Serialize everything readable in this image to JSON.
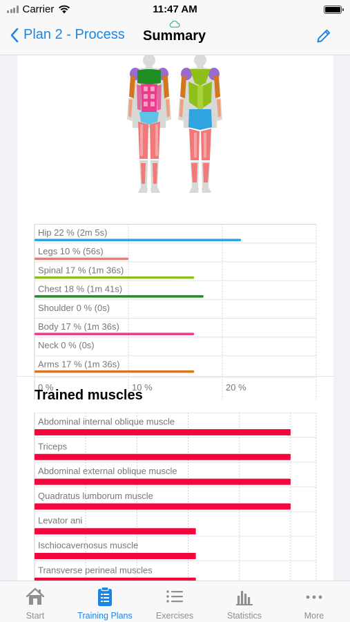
{
  "status_bar": {
    "carrier": "Carrier",
    "time": "11:47 AM"
  },
  "nav": {
    "back_label": "Plan 2 - Process",
    "title": "Summary"
  },
  "colors": {
    "accent": "#1a86e8",
    "muscle_bar": "#f2063c",
    "tab_inactive": "#8e8e93"
  },
  "region_chart": {
    "chart_data": {
      "type": "bar",
      "orientation": "horizontal",
      "categories": [
        "Hip",
        "Legs",
        "Spinal",
        "Chest",
        "Shoulder",
        "Body",
        "Neck",
        "Arms"
      ],
      "labels": [
        "Hip 22 % (2m 5s)",
        "Legs 10 % (56s)",
        "Spinal 17 % (1m 36s)",
        "Chest 18 % (1m 41s)",
        "Shoulder 0 % (0s)",
        "Body 17 % (1m 36s)",
        "Neck 0 % (0s)",
        "Arms 17 % (1m 36s)"
      ],
      "values": [
        22,
        10,
        17,
        18,
        0,
        17,
        0,
        17
      ],
      "colors": [
        "#2fa4de",
        "#f07a6e",
        "#8fbf1a",
        "#1e8e22",
        "#9a6ad0",
        "#e83e8c",
        "#9e9e9e",
        "#d4761e"
      ],
      "xlim": [
        0,
        30
      ],
      "xtick_labels": [
        "0 %",
        "10 %",
        "20 %"
      ],
      "xticks": [
        0,
        10,
        20
      ],
      "grid": true
    }
  },
  "trained_muscles": {
    "title": "Trained muscles",
    "chart_data": {
      "type": "bar",
      "orientation": "horizontal",
      "categories": [
        "Abdominal internal oblique muscle",
        "Triceps",
        "Abdominal external oblique muscle",
        "Quadratus lumborum muscle",
        "Levator ani",
        "Ischiocavernosus muscle",
        "Transverse perineal muscles"
      ],
      "values": [
        100,
        100,
        100,
        100,
        63,
        63,
        63
      ],
      "xlim": [
        0,
        110
      ],
      "grid": true
    }
  },
  "tabs": [
    {
      "label": "Start",
      "icon": "house-icon",
      "active": false
    },
    {
      "label": "Training Plans",
      "icon": "clipboard-icon",
      "active": true
    },
    {
      "label": "Exercises",
      "icon": "list-icon",
      "active": false
    },
    {
      "label": "Statistics",
      "icon": "bar-chart-icon",
      "active": false
    },
    {
      "label": "More",
      "icon": "more-icon",
      "active": false
    }
  ]
}
